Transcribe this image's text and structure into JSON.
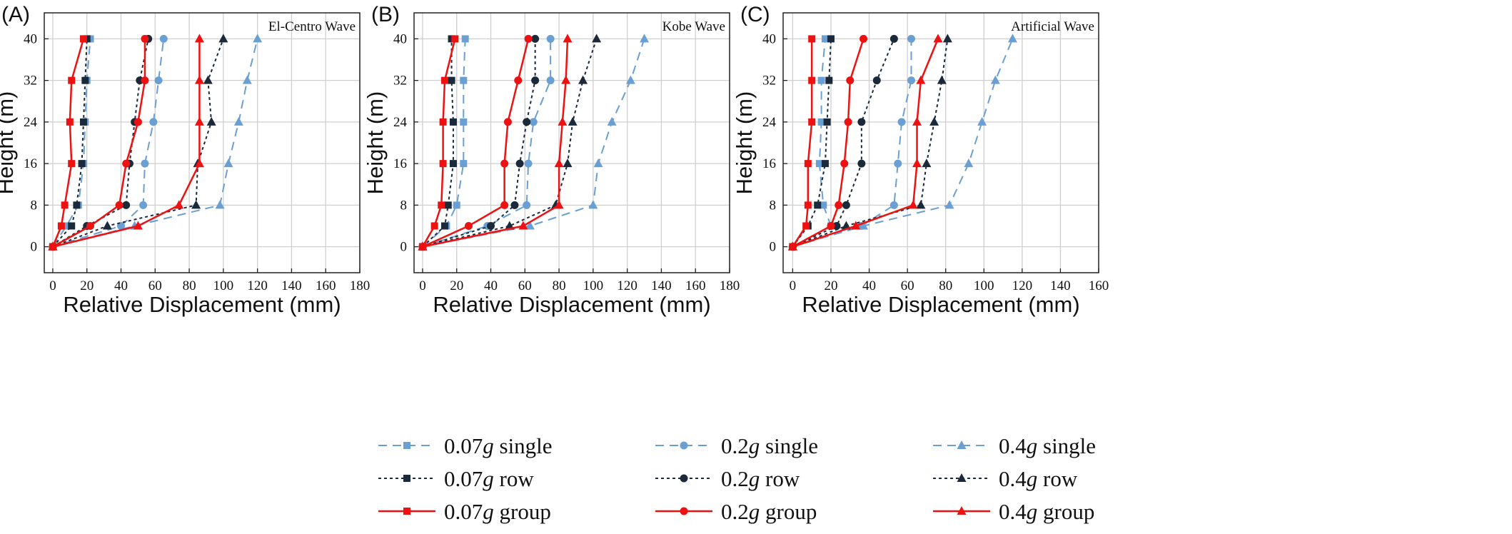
{
  "legend": {
    "entries": [
      {
        "series": "0.07g single",
        "amp": "0.07",
        "g": "g",
        "rest": " single",
        "marker": "square",
        "style": "single"
      },
      {
        "series": "0.2g single",
        "amp": "0.2",
        "g": "g",
        "rest": " single",
        "marker": "circle",
        "style": "single"
      },
      {
        "series": "0.4g single",
        "amp": "0.4",
        "g": "g",
        "rest": " single",
        "marker": "triangle",
        "style": "single"
      },
      {
        "series": "0.07g row",
        "amp": "0.07",
        "g": "g",
        "rest": " row",
        "marker": "square",
        "style": "row"
      },
      {
        "series": "0.2g row",
        "amp": "0.2",
        "g": "g",
        "rest": " row",
        "marker": "circle",
        "style": "row"
      },
      {
        "series": "0.4g row",
        "amp": "0.4",
        "g": "g",
        "rest": " row",
        "marker": "triangle",
        "style": "row"
      },
      {
        "series": "0.07g group",
        "amp": "0.07",
        "g": "g",
        "rest": " group",
        "marker": "square",
        "style": "group"
      },
      {
        "series": "0.2g group",
        "amp": "0.2",
        "g": "g",
        "rest": " group",
        "marker": "circle",
        "style": "group"
      },
      {
        "series": "0.4g group",
        "amp": "0.4",
        "g": "g",
        "rest": " group",
        "marker": "triangle",
        "style": "group"
      }
    ]
  },
  "styles": {
    "single": {
      "color": "#6a9fd4",
      "dash": "12 8",
      "width": 2
    },
    "row": {
      "color": "#1b2a3a",
      "dash": "4 4",
      "width": 2
    },
    "group": {
      "color": "#ee1111",
      "dash": "",
      "width": 2.5
    }
  },
  "chart_data": [
    {
      "type": "line",
      "panel_label": "(A)",
      "wave_label": "El-Centro Wave",
      "xlabel": "Relative Displacement (mm)",
      "ylabel": "Height (m)",
      "xlim": [
        -5,
        180
      ],
      "ylim": [
        -5,
        45
      ],
      "xticks": [
        0,
        20,
        40,
        60,
        80,
        100,
        120,
        140,
        160,
        180
      ],
      "yticks": [
        0,
        8,
        16,
        24,
        32,
        40
      ],
      "grid": true,
      "heights": [
        0,
        4,
        8,
        16,
        24,
        32,
        40
      ],
      "series": [
        {
          "name": "0.07g single",
          "x": [
            0,
            8,
            15,
            18,
            19,
            20,
            22
          ]
        },
        {
          "name": "0.2g single",
          "x": [
            0,
            40,
            53,
            54,
            59,
            62,
            65
          ]
        },
        {
          "name": "0.4g single",
          "x": [
            0,
            48,
            98,
            103,
            109,
            114,
            120
          ]
        },
        {
          "name": "0.07g row",
          "x": [
            0,
            11,
            14,
            17,
            18,
            19,
            20
          ]
        },
        {
          "name": "0.2g row",
          "x": [
            0,
            20,
            43,
            45,
            48,
            51,
            56
          ]
        },
        {
          "name": "0.4g row",
          "x": [
            0,
            32,
            84,
            85,
            93,
            91,
            100
          ]
        },
        {
          "name": "0.07g group",
          "x": [
            0,
            5,
            7,
            11,
            10,
            11,
            18
          ]
        },
        {
          "name": "0.2g group",
          "x": [
            0,
            22,
            39,
            43,
            50,
            54,
            54
          ]
        },
        {
          "name": "0.4g group",
          "x": [
            0,
            50,
            74,
            86,
            86,
            86,
            86
          ]
        }
      ]
    },
    {
      "type": "line",
      "panel_label": "(B)",
      "wave_label": "Kobe Wave",
      "xlabel": "Relative Displacement (mm)",
      "ylabel": "Height (m)",
      "xlim": [
        -5,
        180
      ],
      "ylim": [
        -5,
        45
      ],
      "xticks": [
        0,
        20,
        40,
        60,
        80,
        100,
        120,
        140,
        160,
        180
      ],
      "yticks": [
        0,
        8,
        16,
        24,
        32,
        40
      ],
      "grid": true,
      "heights": [
        0,
        4,
        8,
        16,
        24,
        32,
        40
      ],
      "series": [
        {
          "name": "0.07g single",
          "x": [
            0,
            14,
            20,
            24,
            24,
            24,
            25
          ]
        },
        {
          "name": "0.2g single",
          "x": [
            0,
            38,
            61,
            62,
            65,
            75,
            75
          ]
        },
        {
          "name": "0.4g single",
          "x": [
            0,
            63,
            100,
            103,
            111,
            122,
            130
          ]
        },
        {
          "name": "0.07g row",
          "x": [
            0,
            13,
            15,
            18,
            18,
            17,
            17
          ]
        },
        {
          "name": "0.2g row",
          "x": [
            0,
            40,
            54,
            57,
            61,
            66,
            66
          ]
        },
        {
          "name": "0.4g row",
          "x": [
            0,
            51,
            78,
            85,
            88,
            94,
            102
          ]
        },
        {
          "name": "0.07g group",
          "x": [
            0,
            7,
            11,
            12,
            12,
            13,
            19
          ]
        },
        {
          "name": "0.2g group",
          "x": [
            0,
            27,
            48,
            48,
            50,
            56,
            62
          ]
        },
        {
          "name": "0.4g group",
          "x": [
            0,
            59,
            80,
            80,
            82,
            84,
            85
          ]
        }
      ]
    },
    {
      "type": "line",
      "panel_label": "(C)",
      "wave_label": "Artificial Wave",
      "xlabel": "Relative Displacement (mm)",
      "ylabel": "Height (m)",
      "xlim": [
        -5,
        160
      ],
      "ylim": [
        -5,
        45
      ],
      "xticks": [
        0,
        20,
        40,
        60,
        80,
        100,
        120,
        140,
        160
      ],
      "yticks": [
        0,
        8,
        16,
        24,
        32,
        40
      ],
      "grid": true,
      "heights": [
        0,
        4,
        8,
        16,
        24,
        32,
        40
      ],
      "series": [
        {
          "name": "0.07g single",
          "x": [
            0,
            20,
            16,
            14,
            15,
            15,
            17
          ]
        },
        {
          "name": "0.2g single",
          "x": [
            0,
            36,
            53,
            55,
            57,
            62,
            62
          ]
        },
        {
          "name": "0.4g single",
          "x": [
            0,
            37,
            82,
            92,
            99,
            106,
            115
          ]
        },
        {
          "name": "0.07g row",
          "x": [
            0,
            8,
            13,
            17,
            18,
            19,
            20
          ]
        },
        {
          "name": "0.2g row",
          "x": [
            0,
            23,
            28,
            36,
            36,
            44,
            53
          ]
        },
        {
          "name": "0.4g row",
          "x": [
            0,
            28,
            67,
            70,
            74,
            78,
            81
          ]
        },
        {
          "name": "0.07g group",
          "x": [
            0,
            7,
            8,
            8,
            10,
            10,
            10
          ]
        },
        {
          "name": "0.2g group",
          "x": [
            0,
            20,
            24,
            27,
            29,
            30,
            37
          ]
        },
        {
          "name": "0.4g group",
          "x": [
            0,
            33,
            63,
            65,
            65,
            67,
            76
          ]
        }
      ]
    }
  ]
}
